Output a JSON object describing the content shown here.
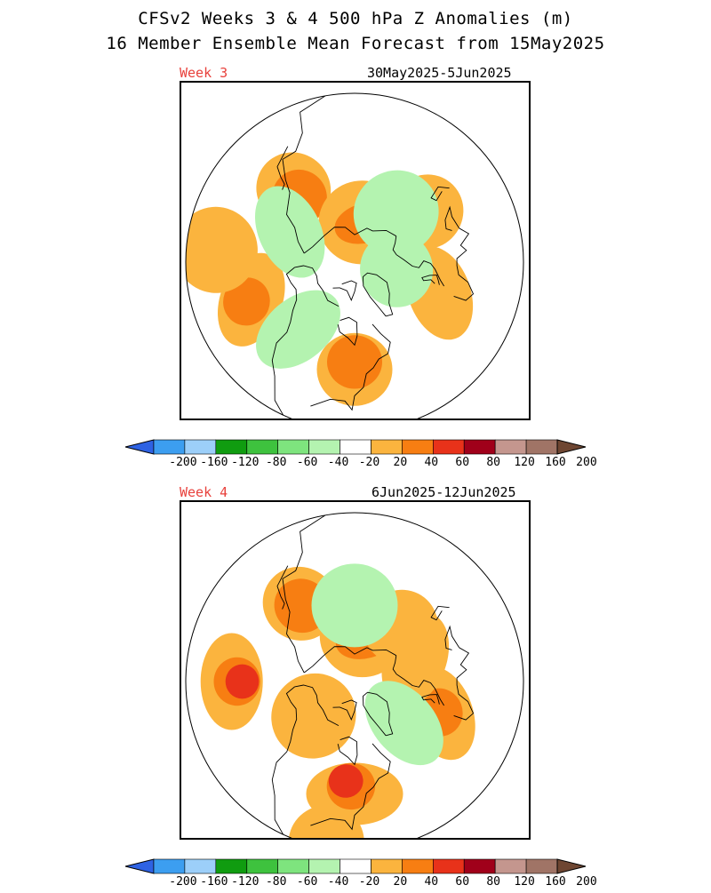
{
  "title": {
    "line1": "CFSv2 Weeks 3 & 4 500 hPa Z Anomalies (m)",
    "line2": "16 Member Ensemble Mean Forecast from 15May2025"
  },
  "panels": [
    {
      "week_label": "Week 3",
      "date_range": "30May2025-5Jun2025",
      "regions": [
        {
          "level": "20",
          "lon": 140,
          "lat": 47
        },
        {
          "level": "40",
          "lon": 140,
          "lat": 51
        },
        {
          "level": "20",
          "lon": -10,
          "lat": 49
        },
        {
          "level": "20",
          "lon": -80,
          "lat": 42
        },
        {
          "level": "40",
          "lon": -80,
          "lat": 45
        },
        {
          "level": "20",
          "lon": -150,
          "lat": 41
        },
        {
          "level": "40",
          "lon": -150,
          "lat": 39
        },
        {
          "level": "20",
          "lon": 90,
          "lat": 71
        },
        {
          "level": "40",
          "lon": 85,
          "lat": 71
        },
        {
          "level": "20",
          "lon": 45,
          "lat": 50
        },
        {
          "level": "20",
          "lon": -175,
          "lat": 30
        },
        {
          "level": "-20",
          "lon": -120,
          "lat": 50
        },
        {
          "level": "-20",
          "lon": 0,
          "lat": 70
        },
        {
          "level": "-20",
          "lon": 60,
          "lat": 60
        },
        {
          "level": "-20",
          "lon": 165,
          "lat": 57
        }
      ]
    },
    {
      "week_label": "Week 4",
      "date_range": "6Jun2025-12Jun2025",
      "regions": [
        {
          "level": "20",
          "lon": 135,
          "lat": 47
        },
        {
          "level": "40",
          "lon": 135,
          "lat": 48
        },
        {
          "level": "20",
          "lon": -170,
          "lat": 36
        },
        {
          "level": "40",
          "lon": -170,
          "lat": 38
        },
        {
          "level": "60",
          "lon": -170,
          "lat": 40
        },
        {
          "level": "20",
          "lon": -80,
          "lat": 40
        },
        {
          "level": "40",
          "lon": -82,
          "lat": 43
        },
        {
          "level": "60",
          "lon": -85,
          "lat": 45
        },
        {
          "level": "20",
          "lon": -10,
          "lat": 48
        },
        {
          "level": "40",
          "lon": -10,
          "lat": 49
        },
        {
          "level": "20",
          "lon": 90,
          "lat": 68
        },
        {
          "level": "40",
          "lon": 85,
          "lat": 69
        },
        {
          "level": "20",
          "lon": 60,
          "lat": 57
        },
        {
          "level": "20",
          "lon": -130,
          "lat": 65
        },
        {
          "level": "20",
          "lon": 30,
          "lat": 60
        },
        {
          "level": "20",
          "lon": -90,
          "lat": 22
        },
        {
          "level": "-20",
          "lon": 100,
          "lat": 55
        },
        {
          "level": "-20",
          "lon": -30,
          "lat": 60
        }
      ]
    }
  ],
  "colorbar": {
    "labels": [
      "-200",
      "-160",
      "-120",
      "-80",
      "-60",
      "-40",
      "-20",
      "20",
      "40",
      "60",
      "80",
      "120",
      "160",
      "200"
    ],
    "colors": [
      "#2e62e3",
      "#3c9ef0",
      "#9ccff9",
      "#109c10",
      "#3ec23e",
      "#7ee47e",
      "#b4f3b0",
      "#ffffff",
      "#fbb43e",
      "#f77e12",
      "#e8321a",
      "#a0001a",
      "#c4968e",
      "#a07466",
      "#6e4632"
    ]
  },
  "level_colors": {
    "-20": "#b4f3b0",
    "20": "#fbb43e",
    "40": "#f77e12",
    "60": "#e8321a"
  }
}
